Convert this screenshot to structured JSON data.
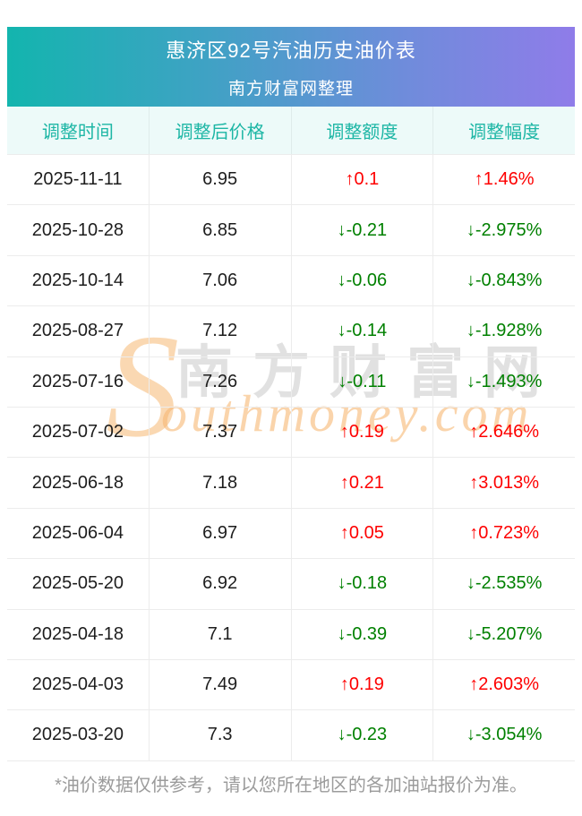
{
  "header": {
    "title": "惠济区92号汽油历史油价表",
    "subtitle": "南方财富网整理"
  },
  "table": {
    "columns": [
      "调整时间",
      "调整后价格",
      "调整额度",
      "调整幅度"
    ],
    "rows": [
      {
        "date": "2025-11-11",
        "price": "6.95",
        "change": "0.1",
        "rate": "1.46%",
        "direction": "up"
      },
      {
        "date": "2025-10-28",
        "price": "6.85",
        "change": "-0.21",
        "rate": "-2.975%",
        "direction": "down"
      },
      {
        "date": "2025-10-14",
        "price": "7.06",
        "change": "-0.06",
        "rate": "-0.843%",
        "direction": "down"
      },
      {
        "date": "2025-08-27",
        "price": "7.12",
        "change": "-0.14",
        "rate": "-1.928%",
        "direction": "down"
      },
      {
        "date": "2025-07-16",
        "price": "7.26",
        "change": "-0.11",
        "rate": "-1.493%",
        "direction": "down"
      },
      {
        "date": "2025-07-02",
        "price": "7.37",
        "change": "0.19",
        "rate": "2.646%",
        "direction": "up"
      },
      {
        "date": "2025-06-18",
        "price": "7.18",
        "change": "0.21",
        "rate": "3.013%",
        "direction": "up"
      },
      {
        "date": "2025-06-04",
        "price": "6.97",
        "change": "0.05",
        "rate": "0.723%",
        "direction": "up"
      },
      {
        "date": "2025-05-20",
        "price": "6.92",
        "change": "-0.18",
        "rate": "-2.535%",
        "direction": "down"
      },
      {
        "date": "2025-04-18",
        "price": "7.1",
        "change": "-0.39",
        "rate": "-5.207%",
        "direction": "down"
      },
      {
        "date": "2025-04-03",
        "price": "7.49",
        "change": "0.19",
        "rate": "2.603%",
        "direction": "up"
      },
      {
        "date": "2025-03-20",
        "price": "7.3",
        "change": "-0.23",
        "rate": "-3.054%",
        "direction": "down"
      }
    ]
  },
  "glyphs": {
    "up_arrow": "↑",
    "down_arrow": "↓"
  },
  "watermark": {
    "initial": "S",
    "text_cn": "南方财富网",
    "text_en": "outhmoney.com"
  },
  "footer": {
    "note": "*油价数据仅供参考，请以您所在地区的各加油站报价为准。"
  },
  "colors": {
    "gradient_start": "#13b5ae",
    "gradient_end": "#8f7ce9",
    "column_header_bg": "#edfaf9",
    "column_header_text": "#1db6a5",
    "up": "#fe0000",
    "down": "#008000",
    "body_text": "#1d1d1d",
    "footer_text": "#9b9b9b"
  },
  "chart_data": {
    "type": "table",
    "title": "惠济区92号汽油历史油价表",
    "subtitle": "南方财富网整理",
    "columns": [
      "调整时间",
      "调整后价格",
      "调整额度",
      "调整幅度"
    ],
    "rows": [
      [
        "2025-11-11",
        6.95,
        "↑0.1",
        "↑1.46%"
      ],
      [
        "2025-10-28",
        6.85,
        "↓-0.21",
        "↓-2.975%"
      ],
      [
        "2025-10-14",
        7.06,
        "↓-0.06",
        "↓-0.843%"
      ],
      [
        "2025-08-27",
        7.12,
        "↓-0.14",
        "↓-1.928%"
      ],
      [
        "2025-07-16",
        7.26,
        "↓-0.11",
        "↓-1.493%"
      ],
      [
        "2025-07-02",
        7.37,
        "↑0.19",
        "↑2.646%"
      ],
      [
        "2025-06-18",
        7.18,
        "↑0.21",
        "↑3.013%"
      ],
      [
        "2025-06-04",
        6.97,
        "↑0.05",
        "↑0.723%"
      ],
      [
        "2025-05-20",
        6.92,
        "↓-0.18",
        "↓-2.535%"
      ],
      [
        "2025-04-18",
        7.1,
        "↓-0.39",
        "↓-5.207%"
      ],
      [
        "2025-04-03",
        7.49,
        "↑0.19",
        "↑2.603%"
      ],
      [
        "2025-03-20",
        7.3,
        "↓-0.23",
        "↓-3.054%"
      ]
    ]
  }
}
